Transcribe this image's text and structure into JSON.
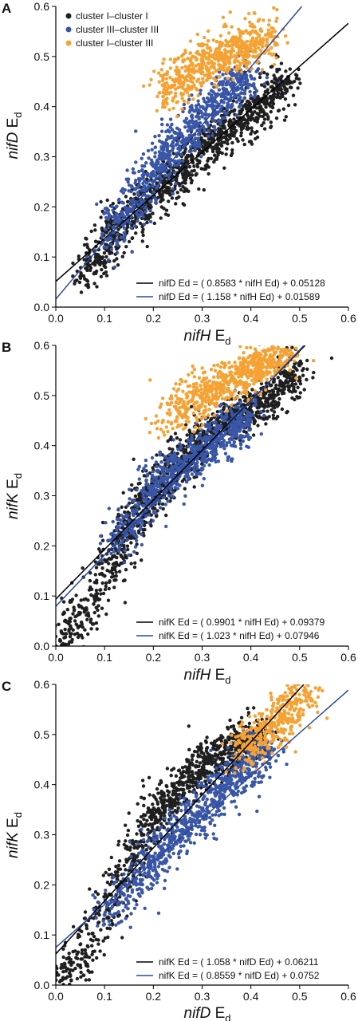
{
  "colors": {
    "cluster_I_I": "#1f1f1f",
    "cluster_III_III": "#3a57a7",
    "cluster_I_III": "#f5a234",
    "fit_black": "#000000",
    "fit_blue": "#2b4aa0"
  },
  "chart_data": [
    {
      "type": "scatter",
      "panel": "A",
      "xlabel": {
        "italic": "nifH",
        "main": "E",
        "sub": "d"
      },
      "ylabel": {
        "italic": "nifD",
        "main": "E",
        "sub": "d"
      },
      "xlim": [
        0.0,
        0.6
      ],
      "ylim": [
        0.0,
        0.6
      ],
      "xticks": [
        "0.0",
        "0.1",
        "0.2",
        "0.3",
        "0.4",
        "0.5",
        "0.6"
      ],
      "yticks": [
        "0.0",
        "0.1",
        "0.2",
        "0.3",
        "0.4",
        "0.5",
        "0.6"
      ],
      "legend": [
        {
          "label": "cluster I–cluster I",
          "color": "#1f1f1f"
        },
        {
          "label": "cluster III–cluster III",
          "color": "#3a57a7"
        },
        {
          "label": "cluster I–cluster III",
          "color": "#f5a234"
        }
      ],
      "series": [
        {
          "name": "cluster I–cluster I",
          "color": "#1f1f1f",
          "points": [
            [
              0.05,
              0.06
            ],
            [
              0.08,
              0.09
            ],
            [
              0.1,
              0.12
            ],
            [
              0.12,
              0.14
            ],
            [
              0.14,
              0.17
            ],
            [
              0.16,
              0.19
            ],
            [
              0.18,
              0.2
            ],
            [
              0.2,
              0.22
            ],
            [
              0.22,
              0.24
            ],
            [
              0.24,
              0.26
            ],
            [
              0.26,
              0.28
            ],
            [
              0.28,
              0.3
            ],
            [
              0.3,
              0.32
            ],
            [
              0.32,
              0.33
            ],
            [
              0.34,
              0.35
            ],
            [
              0.36,
              0.36
            ],
            [
              0.38,
              0.37
            ],
            [
              0.4,
              0.39
            ],
            [
              0.42,
              0.4
            ],
            [
              0.44,
              0.42
            ],
            [
              0.46,
              0.44
            ],
            [
              0.48,
              0.45
            ]
          ]
        },
        {
          "name": "cluster III–cluster III",
          "color": "#3a57a7",
          "points": [
            [
              0.1,
              0.12
            ],
            [
              0.13,
              0.17
            ],
            [
              0.16,
              0.2
            ],
            [
              0.18,
              0.24
            ],
            [
              0.2,
              0.27
            ],
            [
              0.22,
              0.3
            ],
            [
              0.24,
              0.32
            ],
            [
              0.26,
              0.34
            ],
            [
              0.28,
              0.36
            ],
            [
              0.3,
              0.38
            ],
            [
              0.32,
              0.4
            ],
            [
              0.34,
              0.42
            ],
            [
              0.36,
              0.44
            ],
            [
              0.38,
              0.45
            ],
            [
              0.4,
              0.46
            ]
          ]
        },
        {
          "name": "cluster I–cluster III",
          "color": "#f5a234",
          "points": [
            [
              0.22,
              0.42
            ],
            [
              0.24,
              0.44
            ],
            [
              0.26,
              0.46
            ],
            [
              0.28,
              0.47
            ],
            [
              0.3,
              0.49
            ],
            [
              0.32,
              0.5
            ],
            [
              0.34,
              0.5
            ],
            [
              0.36,
              0.51
            ],
            [
              0.38,
              0.52
            ],
            [
              0.4,
              0.53
            ],
            [
              0.42,
              0.53
            ],
            [
              0.44,
              0.54
            ]
          ]
        }
      ],
      "fits": [
        {
          "label": "nifD Ed =  ( 0.8583 * nifH Ed) +  0.05128",
          "slope": 0.8583,
          "intercept": 0.05128,
          "color": "#000000"
        },
        {
          "label": "nifD Ed =  ( 1.158 * nifH Ed) +  0.01589",
          "slope": 1.158,
          "intercept": 0.01589,
          "color": "#2b4aa0"
        }
      ]
    },
    {
      "type": "scatter",
      "panel": "B",
      "xlabel": {
        "italic": "nifH",
        "main": "E",
        "sub": "d"
      },
      "ylabel": {
        "italic": "nifK",
        "main": "E",
        "sub": "d"
      },
      "xlim": [
        0.0,
        0.6
      ],
      "ylim": [
        0.0,
        0.6
      ],
      "xticks": [
        "0.0",
        "0.1",
        "0.2",
        "0.3",
        "0.4",
        "0.5",
        "0.6"
      ],
      "yticks": [
        "0.0",
        "0.1",
        "0.2",
        "0.3",
        "0.4",
        "0.5",
        "0.6"
      ],
      "series": [
        {
          "name": "cluster I–cluster I",
          "color": "#1f1f1f",
          "points": [
            [
              0.0,
              0.0
            ],
            [
              0.03,
              0.04
            ],
            [
              0.06,
              0.07
            ],
            [
              0.1,
              0.14
            ],
            [
              0.12,
              0.18
            ],
            [
              0.14,
              0.22
            ],
            [
              0.16,
              0.25
            ],
            [
              0.18,
              0.28
            ],
            [
              0.2,
              0.3
            ],
            [
              0.22,
              0.33
            ],
            [
              0.24,
              0.35
            ],
            [
              0.26,
              0.37
            ],
            [
              0.28,
              0.39
            ],
            [
              0.3,
              0.41
            ],
            [
              0.32,
              0.43
            ],
            [
              0.34,
              0.44
            ],
            [
              0.36,
              0.45
            ],
            [
              0.38,
              0.46
            ],
            [
              0.4,
              0.47
            ],
            [
              0.42,
              0.48
            ],
            [
              0.44,
              0.5
            ],
            [
              0.46,
              0.52
            ],
            [
              0.48,
              0.54
            ],
            [
              0.5,
              0.56
            ]
          ]
        },
        {
          "name": "cluster III–cluster III",
          "color": "#3a57a7",
          "points": [
            [
              0.12,
              0.2
            ],
            [
              0.15,
              0.24
            ],
            [
              0.18,
              0.28
            ],
            [
              0.2,
              0.31
            ],
            [
              0.22,
              0.33
            ],
            [
              0.24,
              0.35
            ],
            [
              0.26,
              0.36
            ],
            [
              0.28,
              0.38
            ],
            [
              0.3,
              0.39
            ],
            [
              0.32,
              0.4
            ],
            [
              0.34,
              0.42
            ],
            [
              0.36,
              0.43
            ],
            [
              0.38,
              0.45
            ],
            [
              0.4,
              0.46
            ]
          ]
        },
        {
          "name": "cluster I–cluster III",
          "color": "#f5a234",
          "points": [
            [
              0.22,
              0.45
            ],
            [
              0.25,
              0.47
            ],
            [
              0.28,
              0.49
            ],
            [
              0.3,
              0.5
            ],
            [
              0.32,
              0.51
            ],
            [
              0.34,
              0.52
            ],
            [
              0.36,
              0.53
            ],
            [
              0.38,
              0.54
            ],
            [
              0.4,
              0.55
            ],
            [
              0.42,
              0.56
            ],
            [
              0.44,
              0.57
            ],
            [
              0.46,
              0.58
            ],
            [
              0.48,
              0.59
            ]
          ]
        }
      ],
      "fits": [
        {
          "label": "nifK Ed =  ( 0.9901 * nifH Ed) +  0.09379",
          "slope": 0.9901,
          "intercept": 0.09379,
          "color": "#000000"
        },
        {
          "label": "nifK Ed =  ( 1.023 * nifH Ed) +  0.07946",
          "slope": 1.023,
          "intercept": 0.07946,
          "color": "#2b4aa0"
        }
      ]
    },
    {
      "type": "scatter",
      "panel": "C",
      "xlabel": {
        "italic": "nifD",
        "main": "E",
        "sub": "d"
      },
      "ylabel": {
        "italic": "nifK",
        "main": "E",
        "sub": "d"
      },
      "xlim": [
        0.0,
        0.6
      ],
      "ylim": [
        0.0,
        0.6
      ],
      "xticks": [
        "0.0",
        "0.1",
        "0.2",
        "0.3",
        "0.4",
        "0.5",
        "0.6"
      ],
      "yticks": [
        "0.0",
        "0.1",
        "0.2",
        "0.3",
        "0.4",
        "0.5",
        "0.6"
      ],
      "series": [
        {
          "name": "cluster I–cluster I",
          "color": "#1f1f1f",
          "points": [
            [
              0.0,
              0.01
            ],
            [
              0.03,
              0.03
            ],
            [
              0.06,
              0.07
            ],
            [
              0.1,
              0.14
            ],
            [
              0.13,
              0.2
            ],
            [
              0.16,
              0.26
            ],
            [
              0.18,
              0.3
            ],
            [
              0.2,
              0.34
            ],
            [
              0.22,
              0.36
            ],
            [
              0.24,
              0.38
            ],
            [
              0.26,
              0.4
            ],
            [
              0.28,
              0.42
            ],
            [
              0.3,
              0.43
            ],
            [
              0.32,
              0.45
            ],
            [
              0.34,
              0.46
            ],
            [
              0.36,
              0.47
            ],
            [
              0.38,
              0.48
            ],
            [
              0.4,
              0.49
            ],
            [
              0.42,
              0.5
            ]
          ]
        },
        {
          "name": "cluster III–cluster III",
          "color": "#3a57a7",
          "points": [
            [
              0.1,
              0.14
            ],
            [
              0.14,
              0.18
            ],
            [
              0.18,
              0.22
            ],
            [
              0.2,
              0.25
            ],
            [
              0.22,
              0.27
            ],
            [
              0.24,
              0.29
            ],
            [
              0.26,
              0.31
            ],
            [
              0.28,
              0.33
            ],
            [
              0.3,
              0.35
            ],
            [
              0.32,
              0.37
            ],
            [
              0.34,
              0.39
            ],
            [
              0.36,
              0.41
            ],
            [
              0.38,
              0.42
            ],
            [
              0.4,
              0.44
            ],
            [
              0.42,
              0.46
            ],
            [
              0.44,
              0.47
            ]
          ]
        },
        {
          "name": "cluster I–cluster III",
          "color": "#f5a234",
          "points": [
            [
              0.38,
              0.46
            ],
            [
              0.4,
              0.48
            ],
            [
              0.42,
              0.5
            ],
            [
              0.44,
              0.51
            ],
            [
              0.46,
              0.53
            ],
            [
              0.48,
              0.55
            ],
            [
              0.5,
              0.57
            ],
            [
              0.52,
              0.58
            ]
          ]
        }
      ],
      "fits": [
        {
          "label": "nifK Ed =  ( 1.058 * nifD Ed) +  0.06211",
          "slope": 1.058,
          "intercept": 0.06211,
          "color": "#000000"
        },
        {
          "label": "nifK Ed =  ( 0.8559 * nifD Ed) +  0.0752",
          "slope": 0.8559,
          "intercept": 0.0752,
          "color": "#2b4aa0"
        }
      ]
    }
  ]
}
